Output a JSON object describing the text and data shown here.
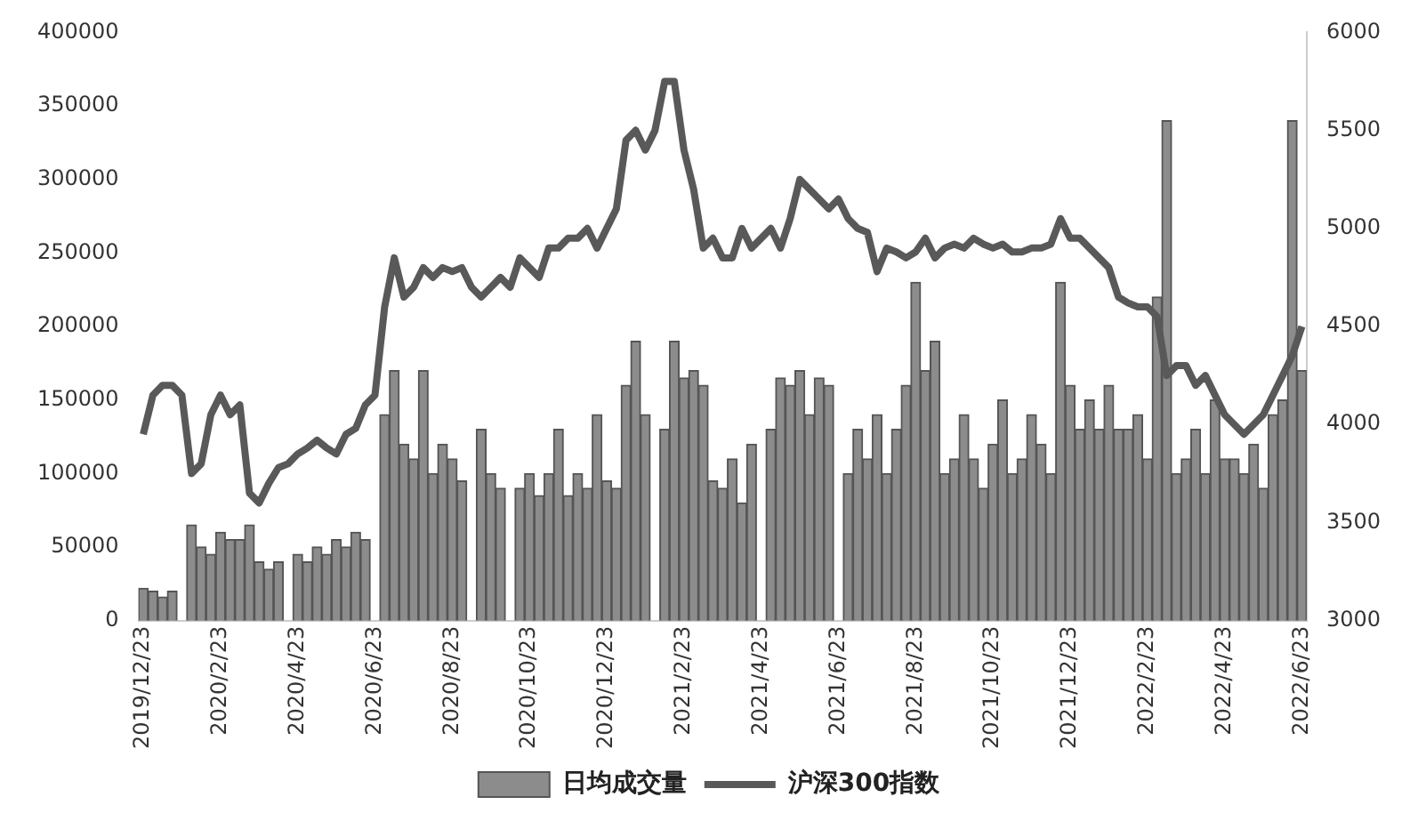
{
  "chart_data": {
    "type": "bar",
    "categories": [
      "2019/12/23",
      null,
      null,
      null,
      null,
      null,
      null,
      null,
      "2020/2/23",
      null,
      null,
      null,
      null,
      null,
      null,
      null,
      "2020/4/23",
      null,
      null,
      null,
      null,
      null,
      null,
      null,
      "2020/6/23",
      null,
      null,
      null,
      null,
      null,
      null,
      null,
      "2020/8/23",
      null,
      null,
      null,
      null,
      null,
      null,
      null,
      "2020/10/23",
      null,
      null,
      null,
      null,
      null,
      null,
      null,
      "2020/12/23",
      null,
      null,
      null,
      null,
      null,
      null,
      null,
      "2021/2/23",
      null,
      null,
      null,
      null,
      null,
      null,
      null,
      "2021/4/23",
      null,
      null,
      null,
      null,
      null,
      null,
      null,
      "2021/6/23",
      null,
      null,
      null,
      null,
      null,
      null,
      null,
      "2021/8/23",
      null,
      null,
      null,
      null,
      null,
      null,
      null,
      "2021/10/23",
      null,
      null,
      null,
      null,
      null,
      null,
      null,
      "2021/12/23",
      null,
      null,
      null,
      null,
      null,
      null,
      null,
      "2022/2/23",
      null,
      null,
      null,
      null,
      null,
      null,
      null,
      "2022/4/23",
      null,
      null,
      null,
      null,
      null,
      null,
      null,
      "2022/6/23"
    ],
    "series": [
      {
        "name": "日均成交量",
        "color": "#8c8c8c",
        "values": [
          22000,
          20000,
          16000,
          20000,
          null,
          65000,
          50000,
          45000,
          60000,
          55000,
          55000,
          65000,
          40000,
          35000,
          40000,
          null,
          45000,
          40000,
          50000,
          45000,
          55000,
          50000,
          60000,
          55000,
          null,
          140000,
          170000,
          120000,
          110000,
          170000,
          100000,
          120000,
          110000,
          95000,
          null,
          130000,
          100000,
          90000,
          null,
          90000,
          100000,
          85000,
          100000,
          130000,
          85000,
          100000,
          90000,
          140000,
          95000,
          90000,
          160000,
          190000,
          140000,
          null,
          130000,
          190000,
          165000,
          170000,
          160000,
          95000,
          90000,
          110000,
          80000,
          120000,
          null,
          130000,
          165000,
          160000,
          170000,
          140000,
          165000,
          160000,
          null,
          100000,
          130000,
          110000,
          140000,
          100000,
          130000,
          160000,
          230000,
          170000,
          190000,
          100000,
          110000,
          140000,
          110000,
          90000,
          120000,
          150000,
          100000,
          110000,
          140000,
          120000,
          100000,
          230000,
          160000,
          130000,
          150000,
          130000,
          160000,
          130000,
          130000,
          140000,
          110000,
          220000,
          340000,
          100000,
          110000,
          130000,
          100000,
          150000,
          110000,
          110000,
          100000,
          120000,
          90000,
          140000,
          150000,
          340000,
          170000
        ]
      },
      {
        "name": "沪深300指数",
        "type": "line",
        "axis": "y2",
        "color": "#595959",
        "values": [
          3950,
          4150,
          4200,
          4200,
          4150,
          3750,
          3800,
          4050,
          4150,
          4050,
          4100,
          3650,
          3600,
          3700,
          3780,
          3800,
          3850,
          3880,
          3920,
          3880,
          3850,
          3950,
          3980,
          4100,
          4150,
          4600,
          4850,
          4650,
          4700,
          4800,
          4750,
          4800,
          4780,
          4800,
          4700,
          4650,
          4700,
          4750,
          4700,
          4850,
          4800,
          4750,
          4900,
          4900,
          4950,
          4950,
          5000,
          4900,
          5000,
          5100,
          5450,
          5500,
          5400,
          5500,
          5750,
          5750,
          5400,
          5200,
          4900,
          4950,
          4850,
          4850,
          5000,
          4900,
          4950,
          5000,
          4900,
          5050,
          5250,
          5200,
          5150,
          5100,
          5150,
          5050,
          5000,
          4980,
          4780,
          4900,
          4880,
          4850,
          4880,
          4950,
          4850,
          4900,
          4920,
          4900,
          4950,
          4920,
          4900,
          4920,
          4880,
          4880,
          4900,
          4900,
          4920,
          5050,
          4950,
          4950,
          4900,
          4850,
          4800,
          4650,
          4620,
          4600,
          4600,
          4550,
          4250,
          4300,
          4300,
          4200,
          4250,
          4150,
          4050,
          4000,
          3950,
          4000,
          4050,
          4150,
          4250,
          4350,
          4500
        ]
      }
    ],
    "ylim": [
      0,
      400000
    ],
    "yticks": [
      0,
      50000,
      100000,
      150000,
      200000,
      250000,
      300000,
      350000,
      400000
    ],
    "y2lim": [
      3000,
      6000
    ],
    "y2ticks": [
      3000,
      3500,
      4000,
      4500,
      5000,
      5500,
      6000
    ],
    "legend": "bottom",
    "grid": false
  }
}
